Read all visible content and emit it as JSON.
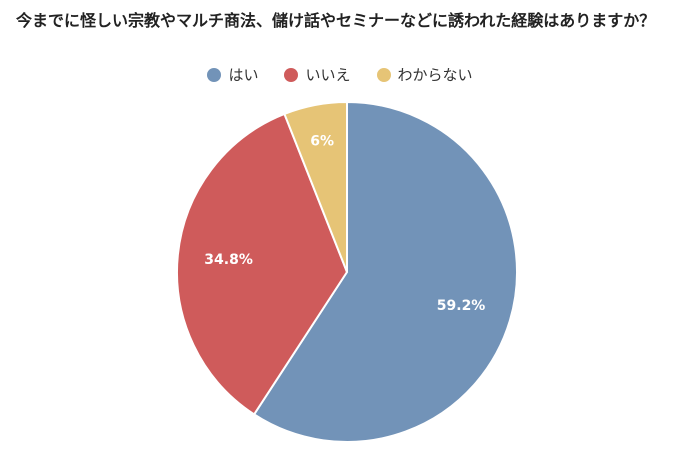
{
  "chart_data": {
    "type": "pie",
    "title": "今までに怪しい宗教やマルチ商法、儲け話やセミナーなどに誘われた経験はありますか？",
    "categories": [
      "はい",
      "いいえ",
      "わからない"
    ],
    "values": [
      59.2,
      34.8,
      6
    ],
    "labels": [
      "59.2%",
      "34.8%",
      "6%"
    ],
    "colors": [
      "#7293b8",
      "#cf5b5b",
      "#e6c476"
    ],
    "legend": "top",
    "start": "12 o'clock",
    "direction": "clockwise"
  }
}
